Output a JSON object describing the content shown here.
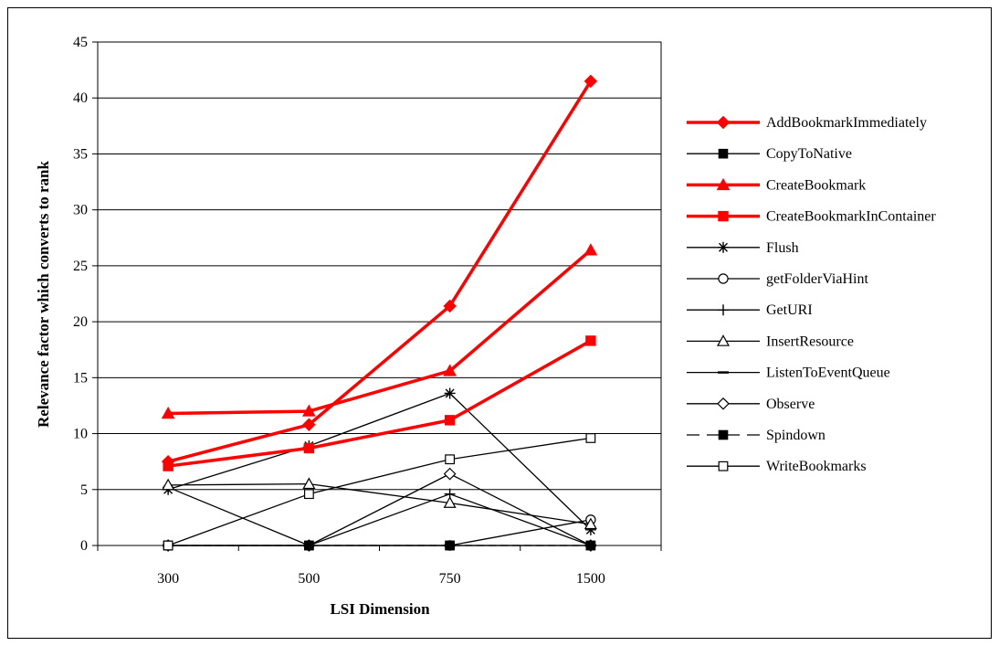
{
  "chart_data": {
    "type": "line",
    "title": "",
    "xlabel": "LSI Dimension",
    "ylabel": "Relevance factor which converts to rank",
    "categories": [
      "300",
      "500",
      "750",
      "1500"
    ],
    "ylim": [
      0,
      45
    ],
    "yticks": [
      0,
      5,
      10,
      15,
      20,
      25,
      30,
      35,
      40,
      45
    ],
    "grid": "horizontal",
    "legend_position": "right",
    "series": [
      {
        "name": "AddBookmarkImmediately",
        "values": [
          7.5,
          10.8,
          21.4,
          41.5
        ],
        "color": "#ff0000",
        "marker": "diamond-filled",
        "dash": "solid",
        "bold": true
      },
      {
        "name": "CopyToNative",
        "values": [
          0,
          0,
          0,
          0
        ],
        "color": "#000000",
        "marker": "square-filled",
        "dash": "solid",
        "bold": false
      },
      {
        "name": "CreateBookmark",
        "values": [
          11.8,
          12.0,
          15.6,
          26.4
        ],
        "color": "#ff0000",
        "marker": "triangle-filled",
        "dash": "solid",
        "bold": true
      },
      {
        "name": "CreateBookmarkInContainer",
        "values": [
          7.1,
          8.7,
          11.2,
          18.3
        ],
        "color": "#ff0000",
        "marker": "square-filled",
        "dash": "solid",
        "bold": true
      },
      {
        "name": "Flush",
        "values": [
          5.0,
          8.9,
          13.6,
          1.4
        ],
        "color": "#000000",
        "marker": "star",
        "dash": "solid",
        "bold": false
      },
      {
        "name": "getFolderViaHint",
        "values": [
          0,
          0,
          0,
          2.3
        ],
        "color": "#000000",
        "marker": "circle-open",
        "dash": "solid",
        "bold": false
      },
      {
        "name": "GetURI",
        "values": [
          5.2,
          0,
          4.6,
          0
        ],
        "color": "#000000",
        "marker": "plus",
        "dash": "solid",
        "bold": false
      },
      {
        "name": "InsertResource",
        "values": [
          5.4,
          5.5,
          3.8,
          1.9
        ],
        "color": "#000000",
        "marker": "triangle-open",
        "dash": "solid",
        "bold": false
      },
      {
        "name": "ListenToEventQueue",
        "values": [
          0,
          0,
          0,
          0
        ],
        "color": "#000000",
        "marker": "dash",
        "dash": "solid",
        "bold": false
      },
      {
        "name": "Observe",
        "values": [
          0,
          0,
          6.4,
          0
        ],
        "color": "#000000",
        "marker": "diamond-open",
        "dash": "solid",
        "bold": false
      },
      {
        "name": "Spindown",
        "values": [
          0,
          0,
          0,
          0
        ],
        "color": "#000000",
        "marker": "square-filled",
        "dash": "dashed",
        "bold": false
      },
      {
        "name": "WriteBookmarks",
        "values": [
          0,
          4.6,
          7.7,
          9.6
        ],
        "color": "#000000",
        "marker": "square-open",
        "dash": "solid",
        "bold": false
      }
    ]
  }
}
